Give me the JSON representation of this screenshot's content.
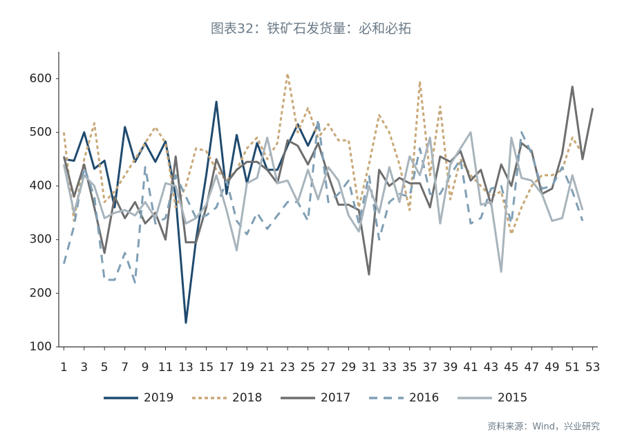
{
  "chart_data": {
    "type": "line",
    "title": "图表32：铁矿石发货量：必和必拓",
    "source": "资料来源：Wind，兴业研究",
    "x": [
      1,
      2,
      3,
      4,
      5,
      6,
      7,
      8,
      9,
      10,
      11,
      12,
      13,
      14,
      15,
      16,
      17,
      18,
      19,
      20,
      21,
      22,
      23,
      24,
      25,
      26,
      27,
      28,
      29,
      30,
      31,
      32,
      33,
      34,
      35,
      36,
      37,
      38,
      39,
      40,
      41,
      42,
      43,
      44,
      45,
      46,
      47,
      48,
      49,
      50,
      51,
      52,
      53
    ],
    "xlim": [
      0.5,
      53.5
    ],
    "xticks": [
      1,
      3,
      5,
      7,
      9,
      11,
      13,
      15,
      17,
      19,
      21,
      23,
      25,
      27,
      29,
      31,
      33,
      35,
      37,
      39,
      41,
      43,
      45,
      47,
      49,
      51,
      53
    ],
    "ylim": [
      100,
      650
    ],
    "yticks": [
      100,
      200,
      300,
      400,
      500,
      600
    ],
    "grid": false,
    "series": [
      {
        "name": "2019",
        "color": "#1f4a6e",
        "dash": "solid",
        "values": [
          450,
          447,
          500,
          432,
          447,
          360,
          510,
          445,
          480,
          445,
          483,
          380,
          145,
          300,
          420,
          557,
          385,
          495,
          405,
          480,
          430,
          430,
          475,
          515,
          475,
          515,
          null,
          null,
          null,
          null,
          null,
          null,
          null,
          null,
          null,
          null,
          null,
          null,
          null,
          null,
          null,
          null,
          null,
          null,
          null,
          null,
          null,
          null,
          null,
          null,
          null,
          null,
          null
        ]
      },
      {
        "name": "2018",
        "color": "#c8a878",
        "dash": "short",
        "values": [
          500,
          335,
          450,
          517,
          370,
          390,
          420,
          450,
          480,
          510,
          480,
          360,
          400,
          470,
          465,
          430,
          410,
          430,
          470,
          490,
          450,
          480,
          610,
          500,
          545,
          490,
          515,
          485,
          485,
          360,
          440,
          532,
          500,
          440,
          355,
          595,
          420,
          548,
          375,
          450,
          420,
          400,
          380,
          390,
          310,
          360,
          400,
          420,
          420,
          430,
          490,
          460,
          null
        ]
      },
      {
        "name": "2017",
        "color": "#6e6e6e",
        "dash": "solid",
        "values": [
          455,
          380,
          440,
          360,
          275,
          380,
          340,
          370,
          330,
          350,
          300,
          455,
          295,
          295,
          360,
          450,
          405,
          430,
          445,
          445,
          430,
          405,
          485,
          475,
          440,
          480,
          420,
          365,
          365,
          355,
          235,
          430,
          400,
          415,
          405,
          405,
          360,
          455,
          445,
          465,
          410,
          430,
          365,
          440,
          400,
          480,
          465,
          385,
          395,
          460,
          585,
          450,
          545
        ]
      },
      {
        "name": "2016",
        "color": "#7f9fb5",
        "dash": "long",
        "values": [
          255,
          325,
          435,
          380,
          225,
          225,
          275,
          220,
          435,
          330,
          340,
          420,
          380,
          340,
          345,
          360,
          410,
          335,
          310,
          350,
          320,
          345,
          370,
          370,
          335,
          525,
          370,
          385,
          410,
          330,
          420,
          300,
          370,
          385,
          380,
          470,
          385,
          385,
          420,
          450,
          330,
          340,
          395,
          400,
          330,
          500,
          460,
          395,
          400,
          435,
          390,
          335,
          null
        ]
      },
      {
        "name": "2015",
        "color": "#a8b4bc",
        "dash": "solid",
        "values": [
          440,
          350,
          420,
          400,
          340,
          350,
          355,
          345,
          370,
          340,
          405,
          400,
          330,
          340,
          365,
          420,
          355,
          280,
          405,
          415,
          490,
          405,
          410,
          370,
          430,
          375,
          435,
          410,
          345,
          315,
          400,
          350,
          435,
          370,
          455,
          420,
          490,
          330,
          440,
          470,
          500,
          365,
          370,
          240,
          490,
          415,
          410,
          385,
          335,
          340,
          420,
          355,
          null
        ]
      }
    ]
  }
}
